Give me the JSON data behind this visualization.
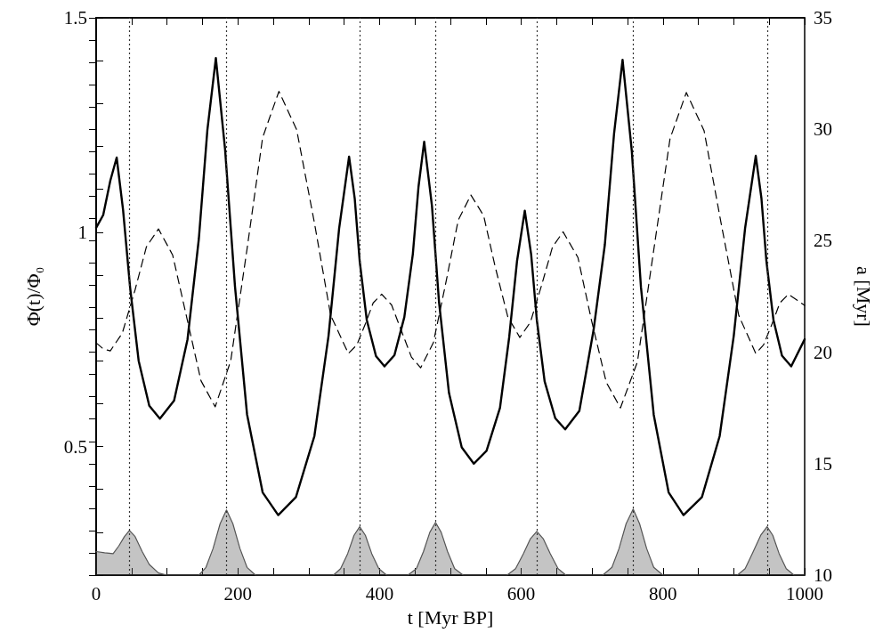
{
  "chart_data": {
    "type": "line",
    "xlabel": "t [Myr BP]",
    "ylabel": "Φ(t)/Φ₀",
    "y2label": "a [Myr]",
    "xlim": [
      0,
      1000
    ],
    "xticks": [
      0,
      {
        "value": 50,
        "label": null
      },
      {
        "value": 100,
        "label": null
      },
      {
        "value": 150,
        "label": null
      },
      200,
      {
        "value": 250,
        "label": null
      },
      {
        "value": 300,
        "label": null
      },
      {
        "value": 350,
        "label": null
      },
      400,
      {
        "value": 450,
        "label": null
      },
      {
        "value": 500,
        "label": null
      },
      {
        "value": 550,
        "label": null
      },
      600,
      {
        "value": 650,
        "label": null
      },
      {
        "value": 700,
        "label": null
      },
      {
        "value": 750,
        "label": null
      },
      800,
      {
        "value": 850,
        "label": null
      },
      {
        "value": 900,
        "label": null
      },
      {
        "value": 950,
        "label": null
      },
      1000
    ],
    "ylim": [
      0.2,
      1.5
    ],
    "yticks": [
      {
        "value": 0.2,
        "label": null
      },
      {
        "value": 0.3,
        "label": null
      },
      {
        "value": 0.4,
        "label": null
      },
      0.5,
      {
        "value": 0.6,
        "label": null
      },
      {
        "value": 0.7,
        "label": null
      },
      {
        "value": 0.8,
        "label": null
      },
      {
        "value": 0.9,
        "label": null
      },
      1,
      {
        "value": 1.1,
        "label": null
      },
      {
        "value": 1.2,
        "label": null
      },
      {
        "value": 1.3,
        "label": null
      },
      {
        "value": 1.4,
        "label": null
      },
      1.5
    ],
    "y2lim": [
      10,
      35
    ],
    "y2ticks": [
      10,
      {
        "value": 11,
        "label": null
      },
      {
        "value": 12,
        "label": null
      },
      {
        "value": 13,
        "label": null
      },
      {
        "value": 14,
        "label": null
      },
      15,
      {
        "value": 16,
        "label": null
      },
      {
        "value": 17,
        "label": null
      },
      {
        "value": 18,
        "label": null
      },
      {
        "value": 19,
        "label": null
      },
      20,
      {
        "value": 21,
        "label": null
      },
      {
        "value": 22,
        "label": null
      },
      {
        "value": 23,
        "label": null
      },
      {
        "value": 24,
        "label": null
      },
      25,
      {
        "value": 26,
        "label": null
      },
      {
        "value": 27,
        "label": null
      },
      {
        "value": 28,
        "label": null
      },
      {
        "value": 29,
        "label": null
      },
      30,
      {
        "value": 31,
        "label": null
      },
      {
        "value": 32,
        "label": null
      },
      {
        "value": 33,
        "label": null
      },
      {
        "value": 34,
        "label": null
      },
      35
    ],
    "grid": false,
    "marker": "none",
    "series": [
      {
        "color": "#000000",
        "line_style": "solid",
        "x": [
          0,
          10,
          20,
          29,
          38,
          48,
          60,
          75,
          90,
          110,
          129,
          145,
          157,
          169,
          182,
          196,
          213,
          235,
          257,
          282,
          308,
          328,
          343,
          357,
          365,
          372,
          382,
          395,
          407,
          421,
          435,
          447,
          455,
          463,
          474,
          484,
          498,
          516,
          533,
          551,
          570,
          583,
          594,
          605,
          614,
          622,
          633,
          648,
          662,
          682,
          702,
          718,
          731,
          743,
          756,
          769,
          787,
          808,
          829,
          855,
          880,
          900,
          916,
          931,
          939,
          946,
          956,
          968,
          981,
          1000
        ],
        "values": [
          1.01,
          1.04,
          1.12,
          1.174,
          1.052,
          0.87,
          0.7,
          0.595,
          0.565,
          0.607,
          0.75,
          0.985,
          1.238,
          1.406,
          1.193,
          0.873,
          0.575,
          0.393,
          0.34,
          0.382,
          0.524,
          0.758,
          1.009,
          1.176,
          1.078,
          0.932,
          0.795,
          0.711,
          0.687,
          0.713,
          0.802,
          0.949,
          1.106,
          1.211,
          1.061,
          0.836,
          0.625,
          0.498,
          0.46,
          0.49,
          0.59,
          0.755,
          0.932,
          1.05,
          0.948,
          0.795,
          0.652,
          0.566,
          0.54,
          0.583,
          0.771,
          0.971,
          1.23,
          1.402,
          1.19,
          0.871,
          0.574,
          0.393,
          0.34,
          0.382,
          0.524,
          0.759,
          1.01,
          1.178,
          1.079,
          0.933,
          0.795,
          0.712,
          0.687,
          0.75
        ]
      },
      {
        "type": "line",
        "axis": "y2",
        "color": "#000000",
        "line_style": "dashed",
        "x": [
          0,
          10,
          20,
          37,
          55,
          71,
          88,
          108,
          128,
          148,
          168,
          190,
          213,
          235,
          258,
          283,
          308,
          331,
          356,
          368,
          380,
          391,
          403,
          417,
          431,
          445,
          458,
          476,
          494,
          511,
          529,
          547,
          563,
          581,
          598,
          613,
          629,
          644,
          659,
          680,
          699,
          720,
          740,
          764,
          787,
          810,
          833,
          858,
          882,
          907,
          931,
          942,
          954,
          965,
          977,
          1000
        ],
        "values": [
          20.42,
          20.15,
          20.06,
          20.86,
          22.8,
          24.73,
          25.53,
          24.36,
          21.54,
          18.72,
          17.55,
          19.62,
          24.63,
          29.63,
          31.7,
          29.98,
          25.82,
          21.66,
          19.94,
          20.33,
          21.27,
          22.21,
          22.6,
          22.12,
          20.95,
          19.78,
          19.3,
          20.43,
          23.18,
          25.92,
          27.05,
          26.12,
          23.86,
          21.59,
          20.66,
          21.35,
          23.03,
          24.71,
          25.4,
          24.25,
          21.45,
          18.65,
          17.5,
          19.57,
          24.58,
          29.58,
          31.65,
          29.94,
          25.8,
          21.65,
          19.94,
          20.33,
          21.27,
          22.21,
          22.6,
          22.1
        ]
      },
      {
        "type": "area",
        "color": "#555555",
        "line_style": "solid",
        "x": [
          0,
          12,
          24,
          32,
          40,
          47,
          55,
          65,
          75,
          88,
          100,
          145,
          155,
          165,
          175,
          184,
          193,
          203,
          213,
          225,
          335,
          345,
          355,
          364,
          372,
          380,
          389,
          399,
          410,
          440,
          452,
          462,
          471,
          479,
          487,
          496,
          506,
          518,
          580,
          592,
          603,
          613,
          622,
          631,
          641,
          652,
          663,
          715,
          728,
          738,
          748,
          758,
          767,
          777,
          787,
          800,
          905,
          916,
          926,
          938,
          947,
          955,
          964,
          974,
          985,
          1000
        ],
        "values": [
          0.255,
          0.252,
          0.25,
          0.268,
          0.29,
          0.304,
          0.29,
          0.255,
          0.225,
          0.205,
          0.2,
          0.2,
          0.218,
          0.262,
          0.32,
          0.352,
          0.32,
          0.262,
          0.218,
          0.2,
          0.2,
          0.215,
          0.25,
          0.293,
          0.313,
          0.293,
          0.25,
          0.215,
          0.2,
          0.2,
          0.215,
          0.255,
          0.3,
          0.323,
          0.3,
          0.255,
          0.215,
          0.2,
          0.2,
          0.215,
          0.25,
          0.285,
          0.302,
          0.285,
          0.25,
          0.215,
          0.2,
          0.2,
          0.218,
          0.262,
          0.32,
          0.354,
          0.32,
          0.262,
          0.218,
          0.2,
          0.2,
          0.215,
          0.25,
          0.293,
          0.313,
          0.293,
          0.25,
          0.215,
          0.2,
          0.2
        ]
      }
    ],
    "ref_lines": [
      {
        "axis": "x",
        "value": 47,
        "line_style": "dotted",
        "color": "#333333"
      },
      {
        "axis": "x",
        "value": 184,
        "line_style": "dotted",
        "color": "#333333"
      },
      {
        "axis": "x",
        "value": 372,
        "line_style": "dotted",
        "color": "#333333"
      },
      {
        "axis": "x",
        "value": 479,
        "line_style": "dotted",
        "color": "#333333"
      },
      {
        "axis": "x",
        "value": 622,
        "line_style": "dotted",
        "color": "#333333"
      },
      {
        "axis": "x",
        "value": 758,
        "line_style": "dotted",
        "color": "#333333"
      },
      {
        "axis": "x",
        "value": 947,
        "line_style": "dotted",
        "color": "#333333"
      }
    ]
  }
}
